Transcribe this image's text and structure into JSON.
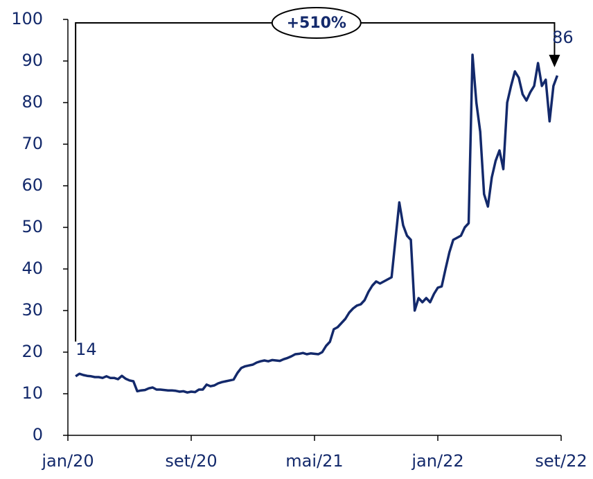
{
  "chart_data": {
    "type": "line",
    "categories": [
      "jan/20",
      null,
      null,
      null,
      null,
      null,
      null,
      null,
      null,
      null,
      null,
      null,
      null,
      null,
      null,
      null,
      null,
      null,
      null,
      null,
      null,
      null,
      null,
      null,
      null,
      null,
      null,
      null,
      null,
      null,
      null,
      null,
      "set/20",
      null,
      null,
      null,
      null,
      null,
      null,
      null,
      null,
      null,
      null,
      null,
      null,
      null,
      null,
      null,
      null,
      null,
      null,
      null,
      null,
      null,
      null,
      null,
      null,
      null,
      null,
      null,
      null,
      null,
      null,
      null,
      "mai/21",
      null,
      null,
      null,
      null,
      null,
      null,
      null,
      null,
      null,
      null,
      null,
      null,
      null,
      null,
      null,
      null,
      null,
      null,
      null,
      null,
      null,
      null,
      null,
      null,
      null,
      null,
      null,
      null,
      null,
      null,
      null,
      "jan/22",
      null,
      null,
      null,
      null,
      null,
      null,
      null,
      null,
      null,
      null,
      null,
      null,
      null,
      null,
      null,
      null,
      null,
      null,
      null,
      null,
      null,
      null,
      null,
      null,
      null,
      null,
      null,
      null,
      null,
      null,
      null,
      "set/22"
    ],
    "series": [
      {
        "color": "#13296b",
        "values": [
          null,
          null,
          14.2,
          14.8,
          14.5,
          14.3,
          14.2,
          14.0,
          14.0,
          13.8,
          14.2,
          13.8,
          13.8,
          13.5,
          14.3,
          13.6,
          13.2,
          13.0,
          10.6,
          10.8,
          10.9,
          11.3,
          11.5,
          11.0,
          11.0,
          10.9,
          10.8,
          10.8,
          10.7,
          10.5,
          10.6,
          10.3,
          10.5,
          10.4,
          11.0,
          11.0,
          12.2,
          11.8,
          12.0,
          12.5,
          12.8,
          13.0,
          13.2,
          13.4,
          15.0,
          16.2,
          16.6,
          16.8,
          17.0,
          17.5,
          17.8,
          18.0,
          17.8,
          18.1,
          18.0,
          17.9,
          18.3,
          18.6,
          19.0,
          19.5,
          19.6,
          19.8,
          19.5,
          19.7,
          19.6,
          19.5,
          20.0,
          21.5,
          22.5,
          25.5,
          26.0,
          27.0,
          28.0,
          29.5,
          30.5,
          31.2,
          31.5,
          32.5,
          34.5,
          36.0,
          37.0,
          36.5,
          37.0,
          37.5,
          38.0,
          47.0,
          56.0,
          50.5,
          48.0,
          47.0,
          30.0,
          33.0,
          32.0,
          33.0,
          32.0,
          34.0,
          35.5,
          35.8,
          40.0,
          44.0,
          47.0,
          47.5,
          48.0,
          50.0,
          51.0,
          91.5,
          80.0,
          73.0,
          58.0,
          55.0,
          62.0,
          66.0,
          68.5,
          64.0,
          80.0,
          84.0,
          87.5,
          86.0,
          82.0,
          80.5,
          82.5,
          84.0,
          89.5,
          84.0,
          85.5,
          75.5,
          84.0,
          86.5,
          null
        ]
      }
    ],
    "ylim": [
      0,
      100
    ],
    "yticks": [
      0,
      10,
      20,
      30,
      40,
      50,
      60,
      70,
      80,
      90,
      100
    ],
    "grid": false,
    "start_label": "14",
    "end_label": "86",
    "change_label": "+510%"
  }
}
